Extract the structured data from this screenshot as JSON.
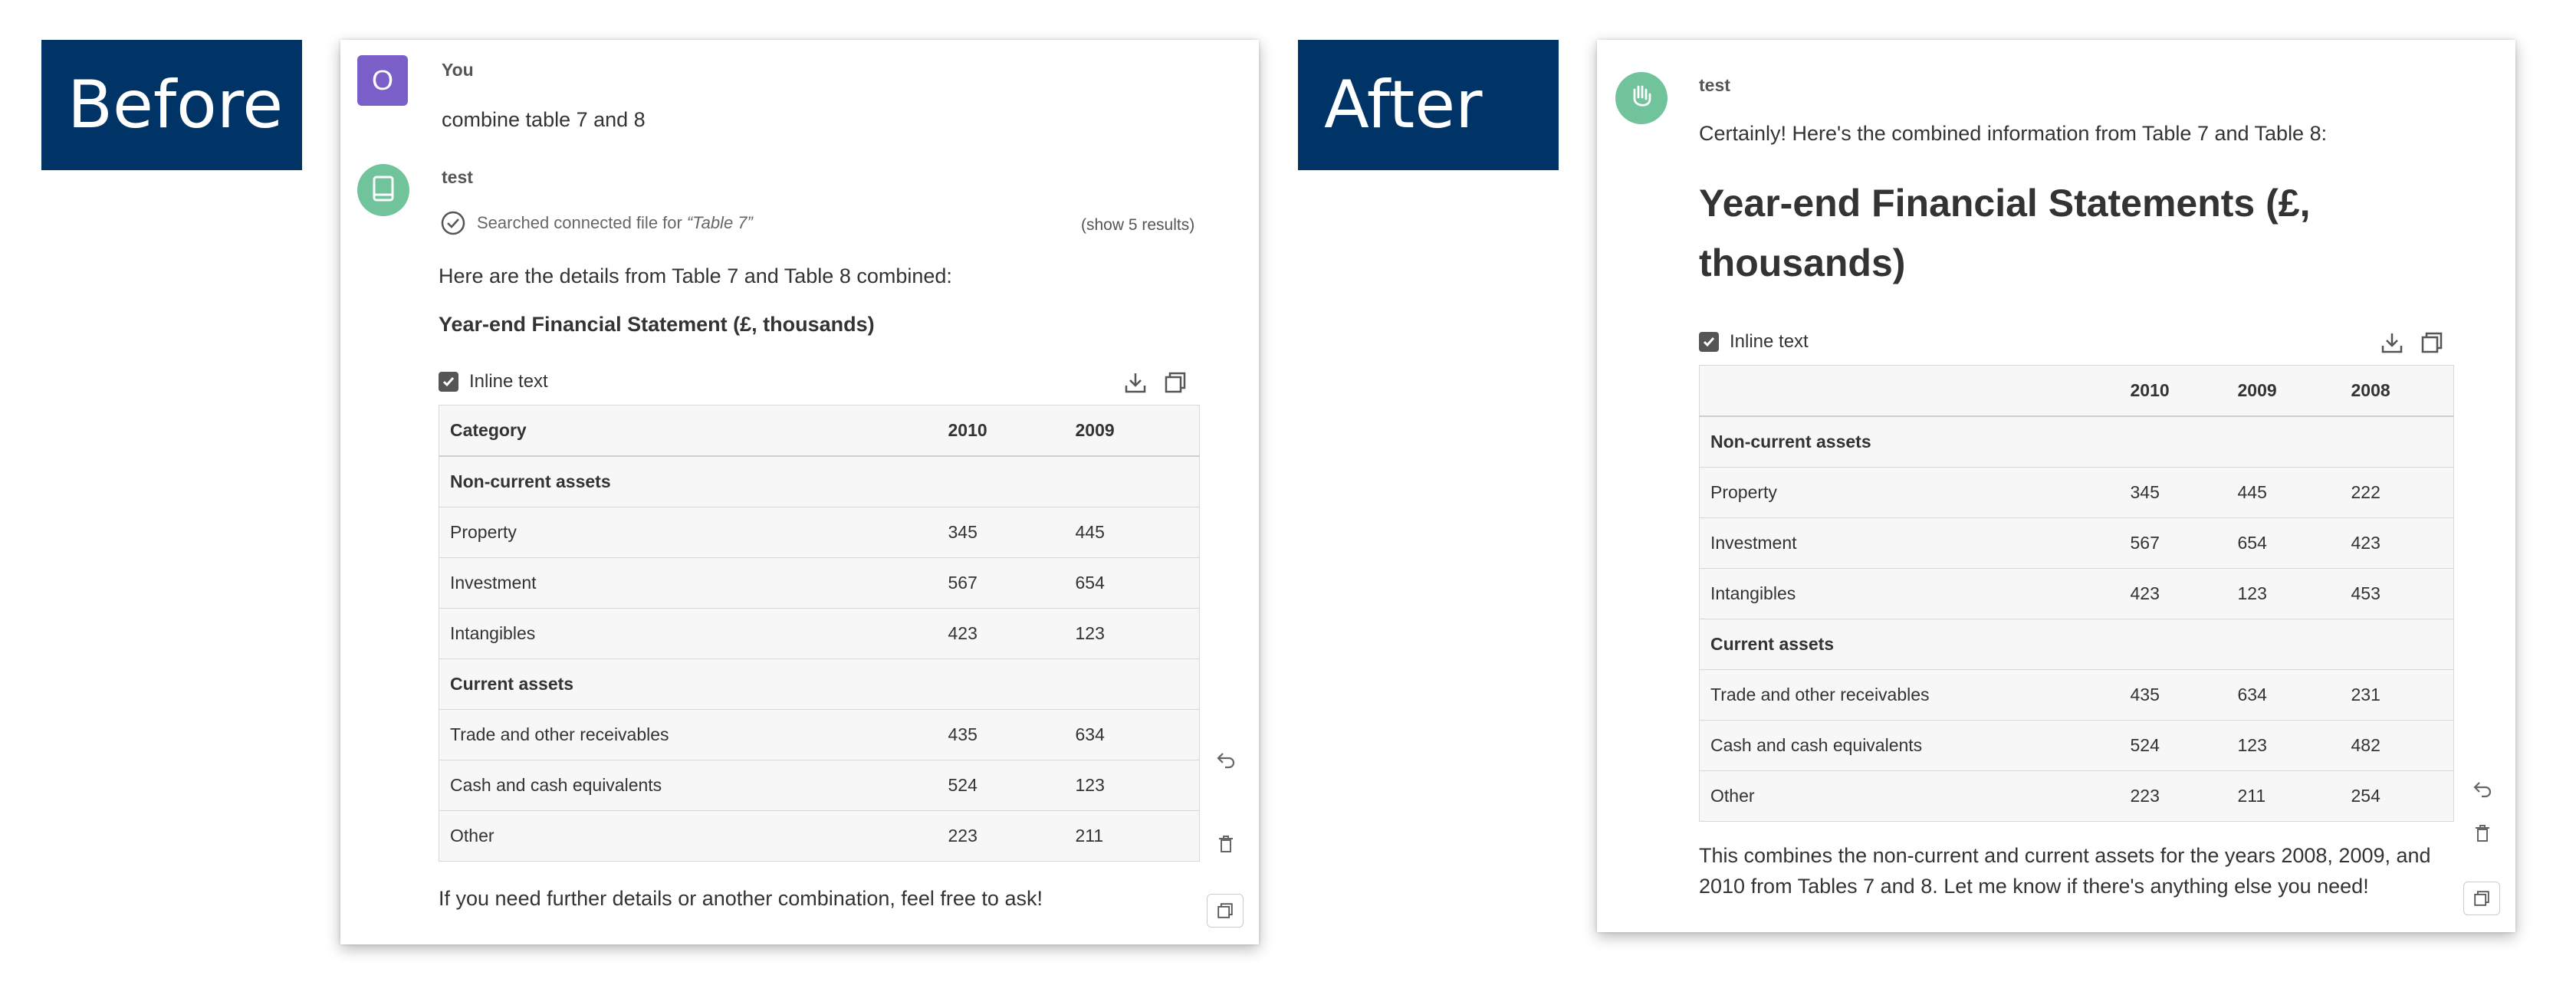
{
  "labels": {
    "before": "Before",
    "after": "After"
  },
  "before": {
    "user_initial": "O",
    "user_name": "You",
    "user_message": "combine table 7 and 8",
    "bot_name": "test",
    "search_text": "Searched connected file for",
    "search_query": "“Table 7”",
    "show_results": "(show 5 results)",
    "intro": "Here are the details from Table 7 and Table 8 combined:",
    "heading": "Year-end Financial Statement (£, thousands)",
    "inline_text_label": "Inline text",
    "table": {
      "headers": [
        "Category",
        "2010",
        "2009"
      ],
      "rows": [
        {
          "section": true,
          "cells": [
            "Non-current assets",
            "",
            ""
          ]
        },
        {
          "cells": [
            "Property",
            "345",
            "445"
          ]
        },
        {
          "cells": [
            "Investment",
            "567",
            "654"
          ]
        },
        {
          "cells": [
            "Intangibles",
            "423",
            "123"
          ]
        },
        {
          "section": true,
          "cells": [
            "Current assets",
            "",
            ""
          ]
        },
        {
          "cells": [
            "Trade and other receivables",
            "435",
            "634"
          ]
        },
        {
          "cells": [
            "Cash and cash equivalents",
            "524",
            "123"
          ]
        },
        {
          "cells": [
            "Other",
            "223",
            "211"
          ]
        }
      ]
    },
    "outro": "If you need further details or another combination, feel free to ask!"
  },
  "after": {
    "bot_name": "test",
    "intro": "Certainly! Here's the combined information from Table 7 and Table 8:",
    "heading_line1": "Year-end Financial Statements (£,",
    "heading_line2": "thousands)",
    "inline_text_label": "Inline text",
    "table": {
      "headers": [
        "",
        "2010",
        "2009",
        "2008"
      ],
      "rows": [
        {
          "section": true,
          "cells": [
            "Non-current assets",
            "",
            "",
            ""
          ]
        },
        {
          "cells": [
            "Property",
            "345",
            "445",
            "222"
          ]
        },
        {
          "cells": [
            "Investment",
            "567",
            "654",
            "423"
          ]
        },
        {
          "cells": [
            "Intangibles",
            "423",
            "123",
            "453"
          ]
        },
        {
          "section": true,
          "cells": [
            "Current assets",
            "",
            "",
            ""
          ]
        },
        {
          "cells": [
            "Trade and other receivables",
            "435",
            "634",
            "231"
          ]
        },
        {
          "cells": [
            "Cash and cash equivalents",
            "524",
            "123",
            "482"
          ]
        },
        {
          "cells": [
            "Other",
            "223",
            "211",
            "254"
          ]
        }
      ]
    },
    "outro_line1": "This combines the non-current and current assets for the years 2008, 2009, and",
    "outro_line2": "2010 from Tables 7 and 8. Let me know if there's anything else you need!"
  },
  "icons": {
    "user_avatar": "letter-avatar",
    "bot_avatar_before": "book-icon",
    "bot_avatar_after": "waving-hand-icon",
    "search_status": "check-circle-icon",
    "download": "download-icon",
    "copy": "copy-icon",
    "regenerate": "undo-icon",
    "delete": "trash-icon"
  },
  "colors": {
    "label_bg": "#003366",
    "user_avatar": "#7b5fc9",
    "bot_avatar": "#71c39b"
  }
}
